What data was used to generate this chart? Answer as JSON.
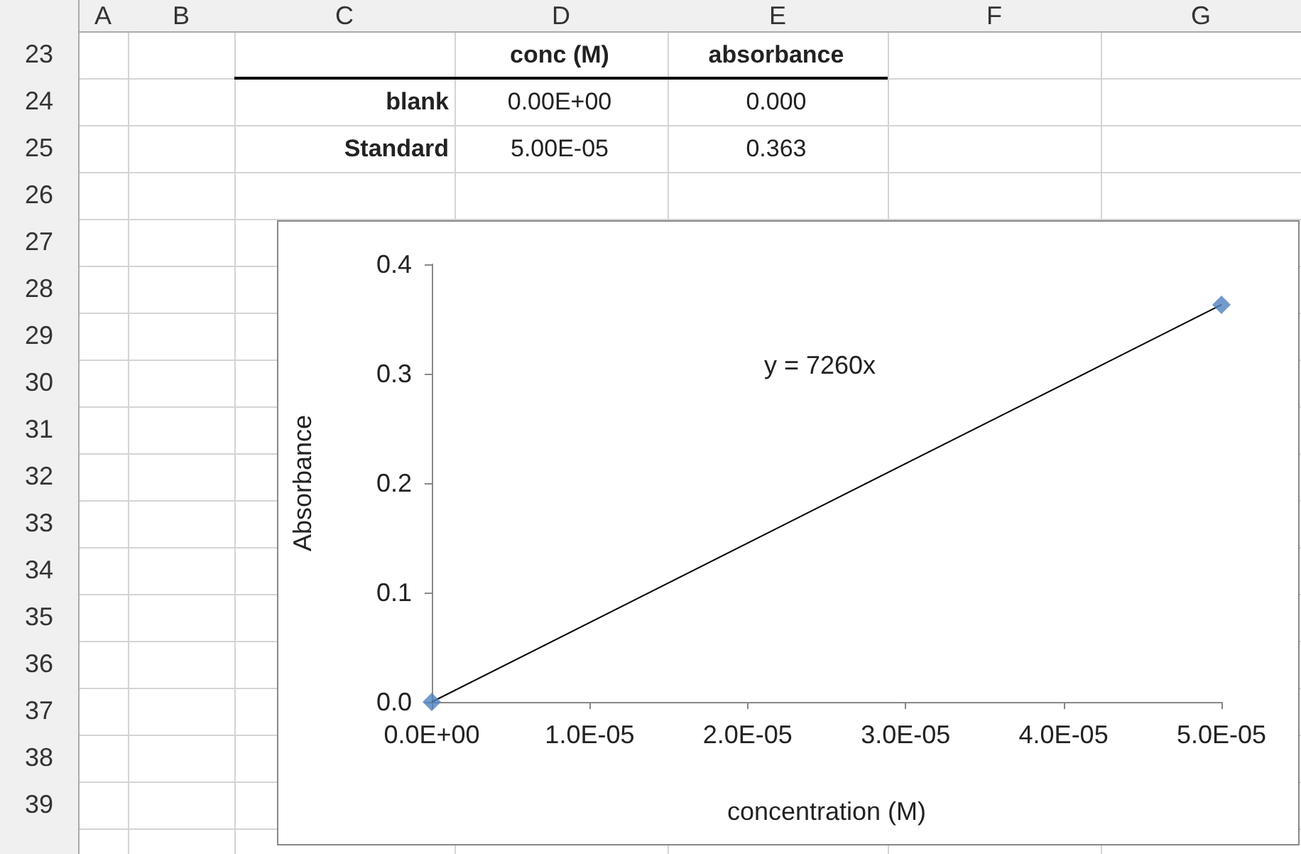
{
  "chart_data": {
    "type": "scatter",
    "xlabel": "concentration (M)",
    "ylabel": "Absorbance",
    "annotations": [
      "y = 7260x",
      "A",
      "B",
      "C",
      "D",
      "E",
      "F",
      "G",
      "23",
      "24",
      "25",
      "26",
      "27",
      "28",
      "29",
      "30",
      "31",
      "32",
      "33",
      "34",
      "35",
      "36",
      "37",
      "38",
      "39",
      "conc (M)",
      "absorbance",
      "blank",
      "0.00E+00",
      "0.000",
      "Standard",
      "5.00E-05",
      "0.363"
    ],
    "series": [
      {
        "color": "#4f81bd",
        "values": [
          0,
          0.363
        ],
        "marker": "diamond"
      },
      {
        "type": "line",
        "color": "#000000",
        "values": [
          0,
          0.363
        ],
        "marker": "none"
      }
    ],
    "x": [
      0,
      5e-05
    ],
    "xlim": [
      0,
      5e-05
    ],
    "xticks": [
      {
        "value": 0,
        "label": "0.0E+00"
      },
      {
        "value": 1e-05,
        "label": "1.0E-05"
      },
      {
        "value": 2e-05,
        "label": "2.0E-05"
      },
      {
        "value": 3e-05,
        "label": "3.0E-05"
      },
      {
        "value": 4e-05,
        "label": "4.0E-05"
      },
      {
        "value": 5e-05,
        "label": "5.0E-05"
      }
    ],
    "ylim": [
      0,
      0.4
    ],
    "yticks": [
      {
        "value": 0,
        "label": "0.0"
      },
      {
        "value": 0.1,
        "label": "0.1"
      },
      {
        "value": 0.2,
        "label": "0.2"
      },
      {
        "value": 0.3,
        "label": "0.3"
      },
      {
        "value": 0.4,
        "label": "0.4"
      }
    ],
    "grid": false
  }
}
